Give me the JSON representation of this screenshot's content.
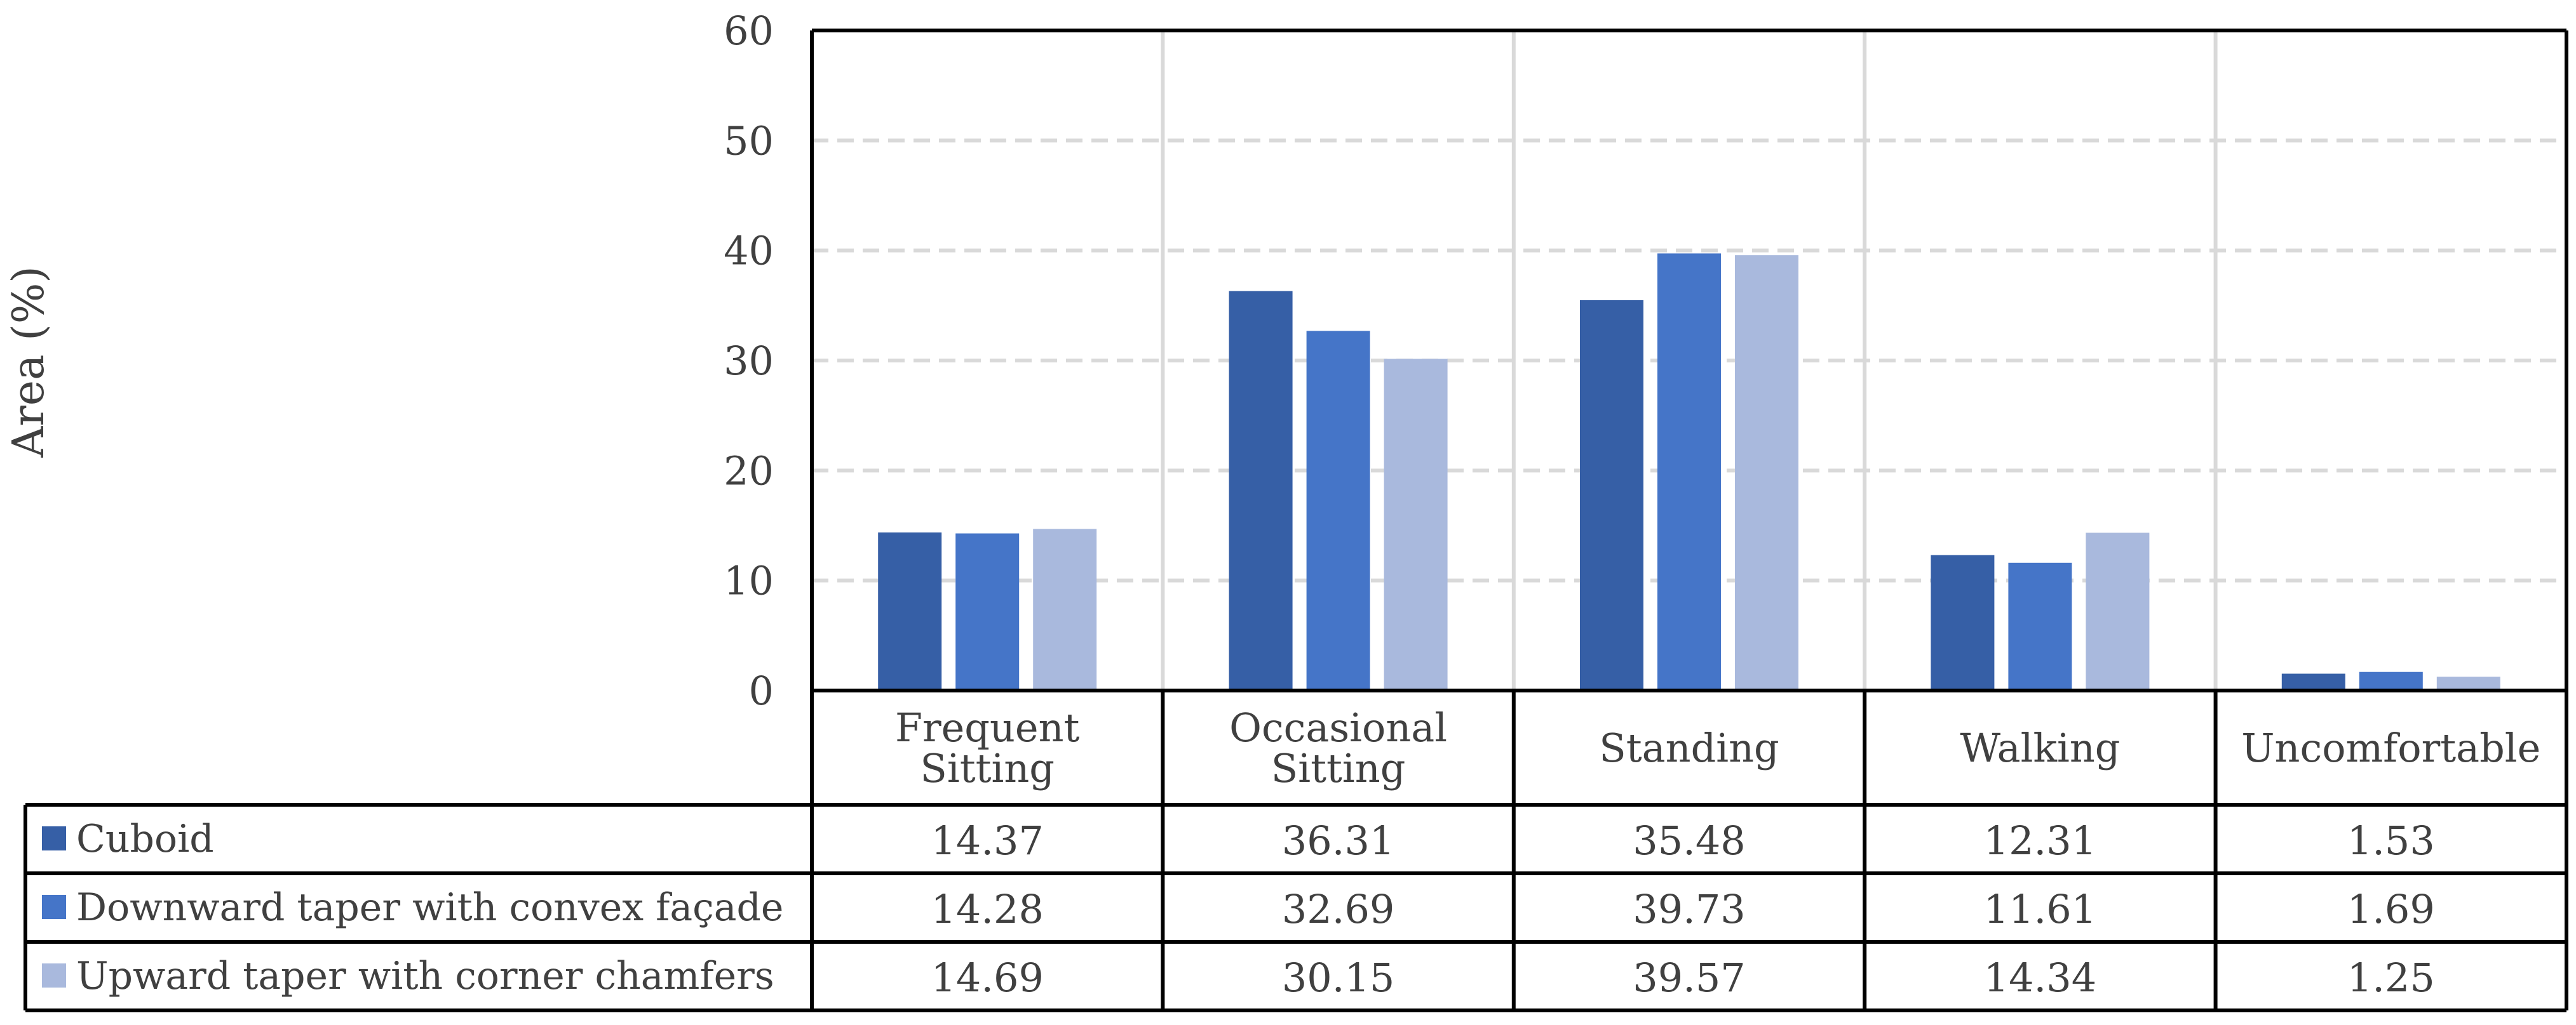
{
  "chart_data": {
    "type": "bar",
    "ylabel": "Area (%)",
    "ylim": [
      0,
      60
    ],
    "yticks": [
      0,
      10,
      20,
      30,
      40,
      50,
      60
    ],
    "grid": true,
    "legend_placement": "data-table-left",
    "categories": [
      [
        "Frequent",
        "Sitting"
      ],
      [
        "Occasional",
        "Sitting"
      ],
      [
        "Standing"
      ],
      [
        "Walking"
      ],
      [
        "Uncomfortable"
      ]
    ],
    "series": [
      {
        "name": "Cuboid",
        "color": "#365fa6",
        "values": [
          14.37,
          36.31,
          35.48,
          12.31,
          1.53
        ],
        "labels": [
          "14.37",
          "36.31",
          "35.48",
          "12.31",
          "1.53"
        ]
      },
      {
        "name": "Downward taper with convex façade",
        "color": "#4575c8",
        "values": [
          14.28,
          32.69,
          39.73,
          11.61,
          1.69
        ],
        "labels": [
          "14.28",
          "32.69",
          "39.73",
          "11.61",
          "1.69"
        ]
      },
      {
        "name": "Upward taper with corner chamfers",
        "color": "#a9b9dd",
        "values": [
          14.69,
          30.15,
          39.57,
          14.34,
          1.25
        ],
        "labels": [
          "14.69",
          "30.15",
          "39.57",
          "14.34",
          "1.25"
        ]
      }
    ]
  }
}
